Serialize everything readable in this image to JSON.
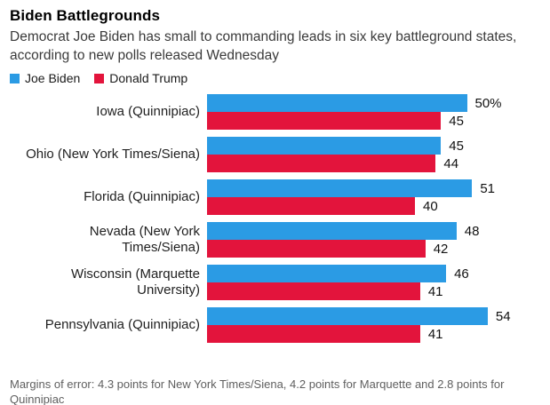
{
  "header": {
    "title": "Biden Battlegrounds",
    "subtitle": "Democrat Joe Biden has small to commanding leads in six key battleground states, according to new polls released Wednesday"
  },
  "legend": [
    {
      "label": "Joe Biden",
      "color": "#2b9be4"
    },
    {
      "label": "Donald Trump",
      "color": "#e3143c"
    }
  ],
  "chart_data": {
    "type": "bar",
    "orientation": "horizontal",
    "title": "Biden Battlegrounds",
    "subtitle": "Democrat Joe Biden has small to commanding leads in six key battleground states, according to new polls released Wednesday",
    "categories": [
      "Iowa (Quinnipiac)",
      "Ohio (New York Times/Siena)",
      "Florida (Quinnipiac)",
      "Nevada (New York Times/Siena)",
      "Wisconsin (Marquette University)",
      "Pennsylvania (Quinnipiac)"
    ],
    "series": [
      {
        "name": "Joe Biden",
        "color": "#2b9be4",
        "values": [
          50,
          45,
          51,
          48,
          46,
          54
        ],
        "value_labels": [
          "50%",
          "45",
          "51",
          "48",
          "46",
          "54"
        ]
      },
      {
        "name": "Donald Trump",
        "color": "#e3143c",
        "values": [
          45,
          44,
          40,
          42,
          41,
          41
        ],
        "value_labels": [
          "45",
          "44",
          "40",
          "42",
          "41",
          "41"
        ]
      }
    ],
    "xlim": [
      0,
      54
    ],
    "grid": false,
    "axes_visible": false,
    "value_label_position": "right-of-bar",
    "legend_position": "top-left"
  },
  "footer": {
    "note": "Margins of error: 4.3 points for New York Times/Siena, 4.2 points for Marquette and 2.8 points for Quinnipiac"
  }
}
